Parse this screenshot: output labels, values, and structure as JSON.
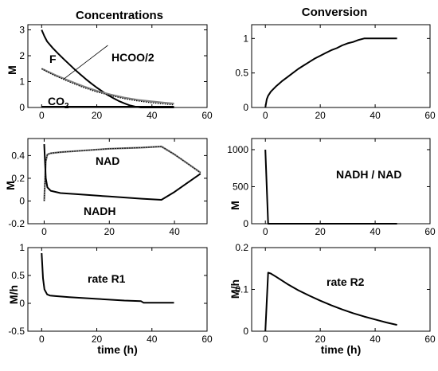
{
  "figure": {
    "titles": {
      "left": "Concentrations",
      "right": "Conversion"
    }
  },
  "chart_data": [
    {
      "id": "p1",
      "type": "line",
      "title": "Concentrations",
      "xlabel": "",
      "ylabel": "M",
      "xlim": [
        -5,
        60
      ],
      "ylim": [
        0,
        3.2
      ],
      "xticks": [
        0,
        20,
        40,
        60
      ],
      "yticks": [
        0,
        1,
        2,
        3
      ],
      "annotations": [
        {
          "text": "F"
        },
        {
          "text": "HCOO/2"
        },
        {
          "text": "CO",
          "sub": "2"
        }
      ],
      "series": [
        {
          "name": "F",
          "style": "solid",
          "points": [
            [
              0,
              3.0
            ],
            [
              1,
              2.75
            ],
            [
              2,
              2.55
            ],
            [
              4,
              2.3
            ],
            [
              6,
              2.08
            ],
            [
              8,
              1.87
            ],
            [
              10,
              1.67
            ],
            [
              12,
              1.47
            ],
            [
              14,
              1.28
            ],
            [
              16,
              1.1
            ],
            [
              18,
              0.93
            ],
            [
              20,
              0.77
            ],
            [
              22,
              0.62
            ],
            [
              24,
              0.48
            ],
            [
              26,
              0.36
            ],
            [
              28,
              0.25
            ],
            [
              30,
              0.16
            ],
            [
              32,
              0.08
            ],
            [
              34,
              0.03
            ],
            [
              36,
              0.0
            ],
            [
              48,
              0.0
            ]
          ]
        },
        {
          "name": "HCOO/2",
          "style": "grey",
          "points": [
            [
              0,
              1.5
            ],
            [
              2,
              1.4
            ],
            [
              5,
              1.25
            ],
            [
              10,
              1.03
            ],
            [
              15,
              0.82
            ],
            [
              20,
              0.64
            ],
            [
              25,
              0.5
            ],
            [
              30,
              0.38
            ],
            [
              35,
              0.29
            ],
            [
              40,
              0.23
            ],
            [
              45,
              0.18
            ],
            [
              48,
              0.15
            ]
          ]
        },
        {
          "name": "CO2",
          "style": "dotted",
          "points": [
            [
              0,
              1.5
            ],
            [
              2,
              1.38
            ],
            [
              5,
              1.22
            ],
            [
              10,
              0.99
            ],
            [
              15,
              0.78
            ],
            [
              20,
              0.6
            ],
            [
              25,
              0.46
            ],
            [
              30,
              0.34
            ],
            [
              35,
              0.25
            ],
            [
              40,
              0.18
            ],
            [
              45,
              0.13
            ],
            [
              48,
              0.1
            ]
          ]
        },
        {
          "name": "CO2 line",
          "style": "bold",
          "points": [
            [
              0,
              0.02
            ],
            [
              48,
              0.02
            ]
          ]
        },
        {
          "name": "label leader",
          "style": "thin",
          "points": [
            [
              8,
              1.1
            ],
            [
              24,
              2.4
            ]
          ]
        }
      ]
    },
    {
      "id": "p2",
      "type": "line",
      "title": "Conversion",
      "xlabel": "",
      "ylabel": "",
      "xlim": [
        -5,
        60
      ],
      "ylim": [
        0,
        1.2
      ],
      "xticks": [
        0,
        20,
        40,
        60
      ],
      "yticks": [
        0,
        0.5,
        1
      ],
      "annotations": [],
      "series": [
        {
          "name": "conversion",
          "style": "solid",
          "points": [
            [
              0,
              0.0
            ],
            [
              0.5,
              0.12
            ],
            [
              1,
              0.17
            ],
            [
              2,
              0.23
            ],
            [
              4,
              0.31
            ],
            [
              6,
              0.38
            ],
            [
              8,
              0.44
            ],
            [
              10,
              0.5
            ],
            [
              12,
              0.56
            ],
            [
              14,
              0.61
            ],
            [
              16,
              0.66
            ],
            [
              18,
              0.71
            ],
            [
              20,
              0.75
            ],
            [
              22,
              0.79
            ],
            [
              24,
              0.83
            ],
            [
              26,
              0.86
            ],
            [
              28,
              0.9
            ],
            [
              30,
              0.93
            ],
            [
              32,
              0.95
            ],
            [
              34,
              0.98
            ],
            [
              36,
              1.0
            ],
            [
              48,
              1.0
            ]
          ]
        }
      ]
    },
    {
      "id": "p3",
      "type": "line",
      "title": "",
      "xlabel": "",
      "ylabel": "M",
      "xlim": [
        -5,
        50
      ],
      "ylim": [
        -0.2,
        0.55
      ],
      "xticks": [
        0,
        20,
        40
      ],
      "yticks": [
        -0.2,
        0,
        0.2,
        0.4
      ],
      "annotations": [
        {
          "text": "NAD"
        },
        {
          "text": "NADH"
        }
      ],
      "series": [
        {
          "name": "NAD",
          "style": "grey",
          "points": [
            [
              0,
              0.0
            ],
            [
              0.5,
              0.35
            ],
            [
              1,
              0.41
            ],
            [
              2,
              0.42
            ],
            [
              5,
              0.43
            ],
            [
              10,
              0.44
            ],
            [
              20,
              0.46
            ],
            [
              30,
              0.47
            ],
            [
              36,
              0.48
            ],
            [
              40,
              0.41
            ],
            [
              44,
              0.33
            ],
            [
              48,
              0.25
            ]
          ]
        },
        {
          "name": "NAD dotted",
          "style": "dotted",
          "points": [
            [
              0,
              0.0
            ],
            [
              0.5,
              0.35
            ],
            [
              1,
              0.41
            ],
            [
              2,
              0.42
            ],
            [
              5,
              0.43
            ],
            [
              10,
              0.44
            ],
            [
              20,
              0.46
            ],
            [
              30,
              0.47
            ],
            [
              36,
              0.48
            ],
            [
              40,
              0.41
            ],
            [
              44,
              0.33
            ],
            [
              48,
              0.25
            ]
          ]
        },
        {
          "name": "NADH",
          "style": "solid",
          "points": [
            [
              0,
              0.5
            ],
            [
              0.5,
              0.2
            ],
            [
              1,
              0.12
            ],
            [
              2,
              0.09
            ],
            [
              5,
              0.07
            ],
            [
              10,
              0.06
            ],
            [
              20,
              0.04
            ],
            [
              30,
              0.02
            ],
            [
              36,
              0.01
            ],
            [
              40,
              0.08
            ],
            [
              44,
              0.16
            ],
            [
              48,
              0.24
            ]
          ]
        }
      ]
    },
    {
      "id": "p4",
      "type": "line",
      "title": "",
      "xlabel": "",
      "ylabel": "M",
      "xlim": [
        -5,
        60
      ],
      "ylim": [
        0,
        1150
      ],
      "xticks": [
        0,
        20,
        40,
        60
      ],
      "yticks": [
        0,
        500,
        1000
      ],
      "annotations": [
        {
          "text": "NADH / NAD"
        }
      ],
      "series": [
        {
          "name": "NADH / NAD",
          "style": "solid",
          "points": [
            [
              0,
              1000
            ],
            [
              1,
              0
            ],
            [
              48,
              0
            ]
          ]
        }
      ]
    },
    {
      "id": "p5",
      "type": "line",
      "title": "",
      "xlabel": "time (h)",
      "ylabel": "M/h",
      "xlim": [
        -5,
        60
      ],
      "ylim": [
        -0.5,
        1.0
      ],
      "xticks": [
        0,
        20,
        40,
        60
      ],
      "yticks": [
        -0.5,
        0,
        0.5,
        1
      ],
      "annotations": [
        {
          "text": "rate R1"
        }
      ],
      "series": [
        {
          "name": "rate R1",
          "style": "solid",
          "points": [
            [
              0,
              0.9
            ],
            [
              0.5,
              0.45
            ],
            [
              1,
              0.25
            ],
            [
              2,
              0.16
            ],
            [
              3,
              0.14
            ],
            [
              5,
              0.13
            ],
            [
              10,
              0.11
            ],
            [
              20,
              0.08
            ],
            [
              30,
              0.05
            ],
            [
              36,
              0.04
            ],
            [
              37,
              0.01
            ],
            [
              48,
              0.01
            ]
          ]
        }
      ]
    },
    {
      "id": "p6",
      "type": "line",
      "title": "",
      "xlabel": "time (h)",
      "ylabel": "M/h",
      "xlim": [
        -5,
        60
      ],
      "ylim": [
        0,
        0.2
      ],
      "xticks": [
        0,
        20,
        40,
        60
      ],
      "yticks": [
        0,
        0.1,
        0.2
      ],
      "annotations": [
        {
          "text": "rate R2"
        }
      ],
      "series": [
        {
          "name": "rate R2",
          "style": "solid",
          "points": [
            [
              0,
              0.0
            ],
            [
              1,
              0.14
            ],
            [
              2,
              0.138
            ],
            [
              4,
              0.13
            ],
            [
              8,
              0.113
            ],
            [
              12,
              0.098
            ],
            [
              16,
              0.085
            ],
            [
              20,
              0.073
            ],
            [
              24,
              0.062
            ],
            [
              28,
              0.052
            ],
            [
              32,
              0.043
            ],
            [
              36,
              0.035
            ],
            [
              40,
              0.028
            ],
            [
              44,
              0.021
            ],
            [
              48,
              0.015
            ]
          ]
        }
      ]
    }
  ]
}
